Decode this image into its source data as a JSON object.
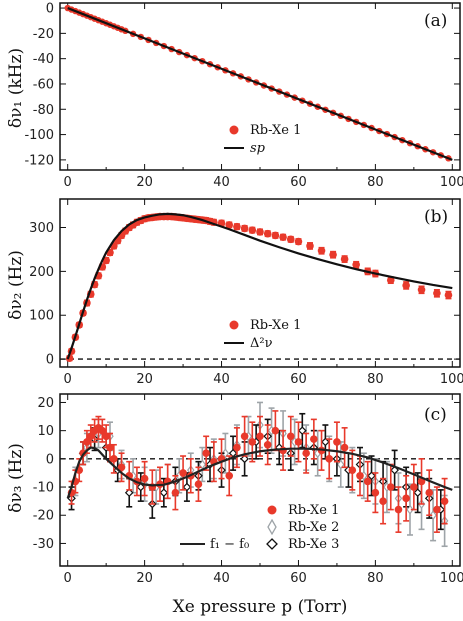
{
  "chart_data": [
    {
      "type": "scatter",
      "panel_tag": "(a)",
      "ylabel": "δν₁ (kHz)",
      "xlim": [
        -2,
        102
      ],
      "ylim": [
        -128,
        4
      ],
      "x_ticks": [
        0,
        20,
        40,
        60,
        80,
        100
      ],
      "y_ticks": [
        0,
        -20,
        -40,
        -60,
        -80,
        -100,
        -120
      ],
      "legend": {
        "position": "lower-center",
        "items": [
          "Rb-Xe 1",
          "sp"
        ]
      },
      "series": [
        {
          "name": "Rb-Xe 1",
          "kind": "points",
          "color": "#e8392b",
          "x": [
            0,
            1,
            2,
            3,
            4,
            5,
            6,
            7,
            8,
            9,
            10,
            11,
            12,
            13,
            14,
            15,
            17,
            19,
            21,
            23,
            25,
            27,
            29,
            31,
            33,
            35,
            37,
            39,
            41,
            43,
            45,
            47,
            49,
            51,
            53,
            55,
            57,
            59,
            61,
            63,
            65,
            67,
            69,
            71,
            73,
            75,
            77,
            79,
            81,
            83,
            85,
            87,
            89,
            91,
            93,
            95,
            97,
            99
          ],
          "y_fn": "linear",
          "slope": -1.2,
          "intercept": 0
        },
        {
          "name": "sp",
          "kind": "line",
          "color": "#111111",
          "x": [
            0,
            100
          ],
          "y": [
            0,
            -120
          ]
        }
      ]
    },
    {
      "type": "scatter",
      "panel_tag": "(b)",
      "ylabel": "δν₂ (Hz)",
      "xlim": [
        -2,
        102
      ],
      "ylim": [
        -18,
        365
      ],
      "x_ticks": [
        0,
        20,
        40,
        60,
        80,
        100
      ],
      "y_ticks": [
        0,
        100,
        200,
        300
      ],
      "zero_line": true,
      "legend": {
        "position": "lower-center",
        "items": [
          "Rb-Xe 1",
          "Δ²ν"
        ]
      },
      "series": [
        {
          "name": "Rb-Xe 1",
          "kind": "errpoints",
          "color": "#e8392b",
          "x": [
            0.5,
            1,
            2,
            3,
            4,
            5,
            6,
            7,
            8,
            9,
            10,
            11,
            12,
            13,
            14,
            15,
            16,
            17,
            18,
            19,
            20,
            21,
            22,
            23,
            24,
            25,
            26,
            27,
            28,
            29,
            30,
            31,
            32,
            33,
            34,
            35,
            36,
            37,
            38,
            40,
            42,
            44,
            46,
            48,
            50,
            52,
            54,
            56,
            58,
            60,
            63,
            66,
            69,
            72,
            75,
            78,
            80,
            84,
            88,
            92,
            96,
            99
          ],
          "y": [
            2,
            18,
            50,
            78,
            105,
            128,
            148,
            170,
            190,
            210,
            225,
            243,
            258,
            270,
            282,
            292,
            300,
            306,
            312,
            316,
            320,
            322,
            323,
            324,
            325,
            325,
            325,
            325,
            324,
            323,
            322,
            321,
            320,
            319,
            318,
            317,
            316,
            314,
            312,
            310,
            306,
            302,
            298,
            294,
            290,
            286,
            282,
            278,
            273,
            268,
            258,
            247,
            238,
            228,
            215,
            200,
            195,
            180,
            168,
            158,
            150,
            146
          ],
          "err": [
            5,
            5,
            5,
            5,
            5,
            6,
            6,
            6,
            6,
            6,
            6,
            6,
            6,
            6,
            6,
            6,
            6,
            6,
            6,
            6,
            6,
            6,
            6,
            6,
            6,
            6,
            6,
            6,
            6,
            6,
            6,
            6,
            6,
            6,
            6,
            6,
            6,
            6,
            6,
            6,
            6,
            6,
            6,
            6,
            6,
            6,
            6,
            6,
            6,
            6,
            7,
            7,
            7,
            7,
            7,
            7,
            7,
            7,
            8,
            8,
            8,
            8
          ]
        },
        {
          "name": "Δ²ν",
          "kind": "line",
          "color": "#111111",
          "x": [
            0,
            1,
            2,
            3,
            4,
            5,
            6,
            7,
            8,
            9,
            10,
            12,
            14,
            16,
            18,
            20,
            22,
            24,
            26,
            28,
            30,
            32,
            35,
            38,
            42,
            46,
            50,
            55,
            60,
            65,
            70,
            75,
            80,
            85,
            90,
            95,
            100
          ],
          "y": [
            0,
            25,
            52,
            80,
            108,
            135,
            160,
            184,
            205,
            225,
            243,
            271,
            292,
            307,
            317,
            323,
            327,
            330,
            331,
            330,
            328,
            324,
            317,
            308,
            296,
            283,
            270,
            255,
            241,
            228,
            216,
            205,
            195,
            186,
            177,
            169,
            162
          ]
        }
      ]
    },
    {
      "type": "scatter",
      "panel_tag": "(c)",
      "xlabel": "Xe pressure p (Torr)",
      "ylabel": "δν₃ (Hz)",
      "xlim": [
        -2,
        102
      ],
      "ylim": [
        -38,
        23
      ],
      "x_ticks": [
        0,
        20,
        40,
        60,
        80,
        100
      ],
      "y_ticks": [
        20,
        10,
        0,
        -10,
        -20,
        -30
      ],
      "zero_line": true,
      "legend": {
        "position": "lower-right",
        "items": [
          "Rb-Xe 1",
          "Rb-Xe 2",
          "Rb-Xe 3",
          "f₁ − f₀"
        ]
      },
      "series": [
        {
          "name": "Rb-Xe 1",
          "kind": "errpoints",
          "color": "#e8392b",
          "x": [
            1,
            2,
            3,
            4,
            5,
            6,
            7,
            8,
            9,
            10,
            11,
            12,
            14,
            16,
            18,
            20,
            22,
            24,
            26,
            28,
            30,
            32,
            34,
            36,
            38,
            40,
            42,
            44,
            46,
            48,
            50,
            52,
            54,
            56,
            58,
            60,
            62,
            64,
            66,
            68,
            70,
            72,
            74,
            76,
            78,
            80,
            82,
            84,
            86,
            88,
            90,
            92,
            94,
            96,
            98
          ],
          "y": [
            -12,
            -8,
            -4,
            2,
            6,
            8,
            10,
            11,
            10,
            8,
            4,
            0,
            -3,
            -6,
            -8,
            -7,
            -10,
            -9,
            -8,
            -12,
            -5,
            -6,
            -9,
            2,
            -1,
            0,
            -6,
            4,
            8,
            6,
            8,
            5,
            10,
            3,
            8,
            6,
            2,
            7,
            3,
            0,
            6,
            4,
            -4,
            -6,
            -8,
            -12,
            -15,
            -10,
            -18,
            -14,
            -10,
            -8,
            -12,
            -18,
            -15
          ],
          "err": [
            4,
            4,
            4,
            4,
            4,
            4,
            4,
            4,
            4,
            4,
            5,
            5,
            5,
            5,
            5,
            6,
            6,
            6,
            6,
            6,
            6,
            6,
            6,
            6,
            7,
            7,
            7,
            7,
            7,
            7,
            7,
            7,
            7,
            7,
            7,
            7,
            7,
            7,
            7,
            7,
            7,
            7,
            7,
            7,
            7,
            7,
            8,
            8,
            8,
            8,
            8,
            8,
            8,
            8,
            8
          ]
        },
        {
          "name": "Rb-Xe 2",
          "kind": "errpoints",
          "color": "#9ea4a8",
          "x": [
            2,
            5,
            8,
            11,
            14,
            17,
            20,
            23,
            26,
            29,
            32,
            35,
            38,
            41,
            44,
            47,
            50,
            53,
            56,
            59,
            62,
            65,
            68,
            71,
            74,
            77,
            80,
            83,
            86,
            89,
            92,
            95,
            98
          ],
          "y": [
            -8,
            4,
            9,
            8,
            -2,
            -6,
            -9,
            -10,
            -8,
            -6,
            -4,
            -2,
            0,
            2,
            5,
            8,
            12,
            10,
            9,
            6,
            4,
            2,
            0,
            -2,
            -4,
            -6,
            -8,
            -10,
            -14,
            -18,
            -16,
            -20,
            -22
          ],
          "err": [
            5,
            5,
            5,
            5,
            5,
            6,
            6,
            6,
            6,
            6,
            6,
            6,
            7,
            7,
            7,
            7,
            8,
            8,
            8,
            8,
            8,
            8,
            8,
            8,
            8,
            8,
            8,
            9,
            9,
            9,
            9,
            9,
            9
          ]
        },
        {
          "name": "Rb-Xe 3",
          "kind": "errpoints",
          "color": "#111111",
          "x": [
            1,
            4,
            7,
            10,
            13,
            16,
            19,
            22,
            25,
            28,
            31,
            34,
            37,
            40,
            43,
            46,
            49,
            52,
            55,
            58,
            61,
            64,
            67,
            70,
            73,
            76,
            79,
            82,
            85,
            88,
            91,
            94,
            97
          ],
          "y": [
            -14,
            2,
            7,
            4,
            -4,
            -12,
            -10,
            -16,
            -12,
            -8,
            -10,
            -6,
            -2,
            -4,
            2,
            0,
            6,
            8,
            4,
            2,
            10,
            4,
            6,
            0,
            -4,
            -2,
            -6,
            -8,
            -4,
            -10,
            -12,
            -14,
            -18
          ],
          "err": [
            4,
            4,
            4,
            4,
            4,
            5,
            5,
            5,
            5,
            5,
            5,
            5,
            6,
            6,
            6,
            6,
            6,
            6,
            6,
            6,
            6,
            6,
            6,
            6,
            6,
            6,
            7,
            7,
            7,
            7,
            7,
            7,
            7
          ]
        },
        {
          "name": "f₁ − f₀",
          "kind": "line",
          "color": "#222222",
          "x": [
            0,
            1,
            2,
            3,
            4,
            5,
            6,
            7,
            8,
            9,
            10,
            12,
            14,
            16,
            18,
            20,
            22,
            25,
            28,
            31,
            34,
            37,
            40,
            43,
            46,
            50,
            54,
            58,
            62,
            66,
            70,
            74,
            78,
            82,
            86,
            90,
            94,
            98,
            100
          ],
          "y": [
            -14,
            -10,
            -5,
            -1,
            1.5,
            3,
            4,
            3.8,
            3,
            1.5,
            0,
            -2.5,
            -5,
            -7,
            -8.3,
            -9.1,
            -9.4,
            -9.2,
            -8,
            -6.4,
            -4.5,
            -2.6,
            -1,
            0.5,
            1.6,
            2.7,
            3.3,
            3.6,
            3.6,
            3.3,
            2.7,
            1.8,
            0.5,
            -1.3,
            -3.3,
            -5.5,
            -7.8,
            -10,
            -11
          ]
        }
      ]
    }
  ],
  "labels": {
    "panel_a": "(a)",
    "panel_b": "(b)",
    "panel_c": "(c)",
    "legend_rbxe1_a": "Rb-Xe 1",
    "legend_sp": "sp",
    "legend_rbxe1_b": "Rb-Xe 1",
    "legend_d2nu": "Δ²ν",
    "legend_rbxe1_c": "Rb-Xe 1",
    "legend_rbxe2": "Rb-Xe 2",
    "legend_rbxe3": "Rb-Xe 3",
    "legend_f1f0": "f₁ − f₀",
    "ylabel_a": "δν₁ (kHz)",
    "ylabel_b": "δν₂ (Hz)",
    "ylabel_c": "δν₃ (Hz)",
    "xlabel": "Xe pressure p (Torr)"
  }
}
